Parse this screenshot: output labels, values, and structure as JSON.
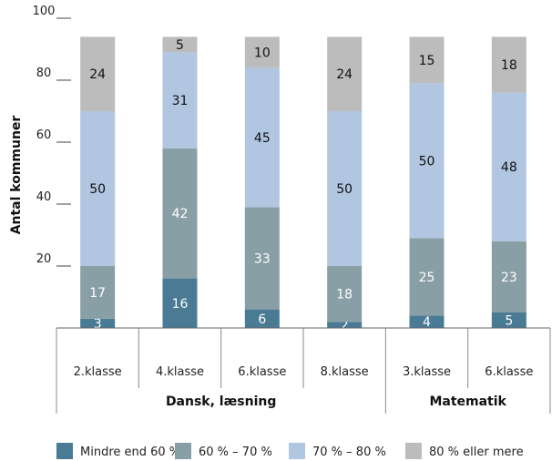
{
  "chart_data": {
    "type": "bar",
    "stacked": true,
    "ylabel": "Antal kommuner",
    "ylim": [
      0,
      100
    ],
    "yticks": [
      20,
      40,
      60,
      80,
      100
    ],
    "categories": [
      "2.klasse",
      "4.klasse",
      "6.klasse",
      "8.klasse",
      "3.klasse",
      "6.klasse"
    ],
    "groups": [
      {
        "label": "Dansk, læsning",
        "categories": [
          0,
          1,
          2,
          3
        ]
      },
      {
        "label": "Matematik",
        "categories": [
          4,
          5
        ]
      }
    ],
    "series": [
      {
        "name": "Mindre end 60 %",
        "color": "#4a7b95",
        "label_color": "#ffffff",
        "values": [
          3,
          16,
          6,
          2,
          4,
          5
        ]
      },
      {
        "name": "60 % – 70 %",
        "color": "#899fa6",
        "label_color": "#ffffff",
        "values": [
          17,
          42,
          33,
          18,
          25,
          23
        ]
      },
      {
        "name": "70 % – 80 %",
        "color": "#b0c6e1",
        "label_color": "#111111",
        "values": [
          50,
          31,
          45,
          50,
          50,
          48
        ]
      },
      {
        "name": "80 % eller mere",
        "color": "#bcbcbc",
        "label_color": "#111111",
        "values": [
          24,
          5,
          10,
          24,
          15,
          18
        ]
      }
    ],
    "legend_position": "bottom"
  }
}
